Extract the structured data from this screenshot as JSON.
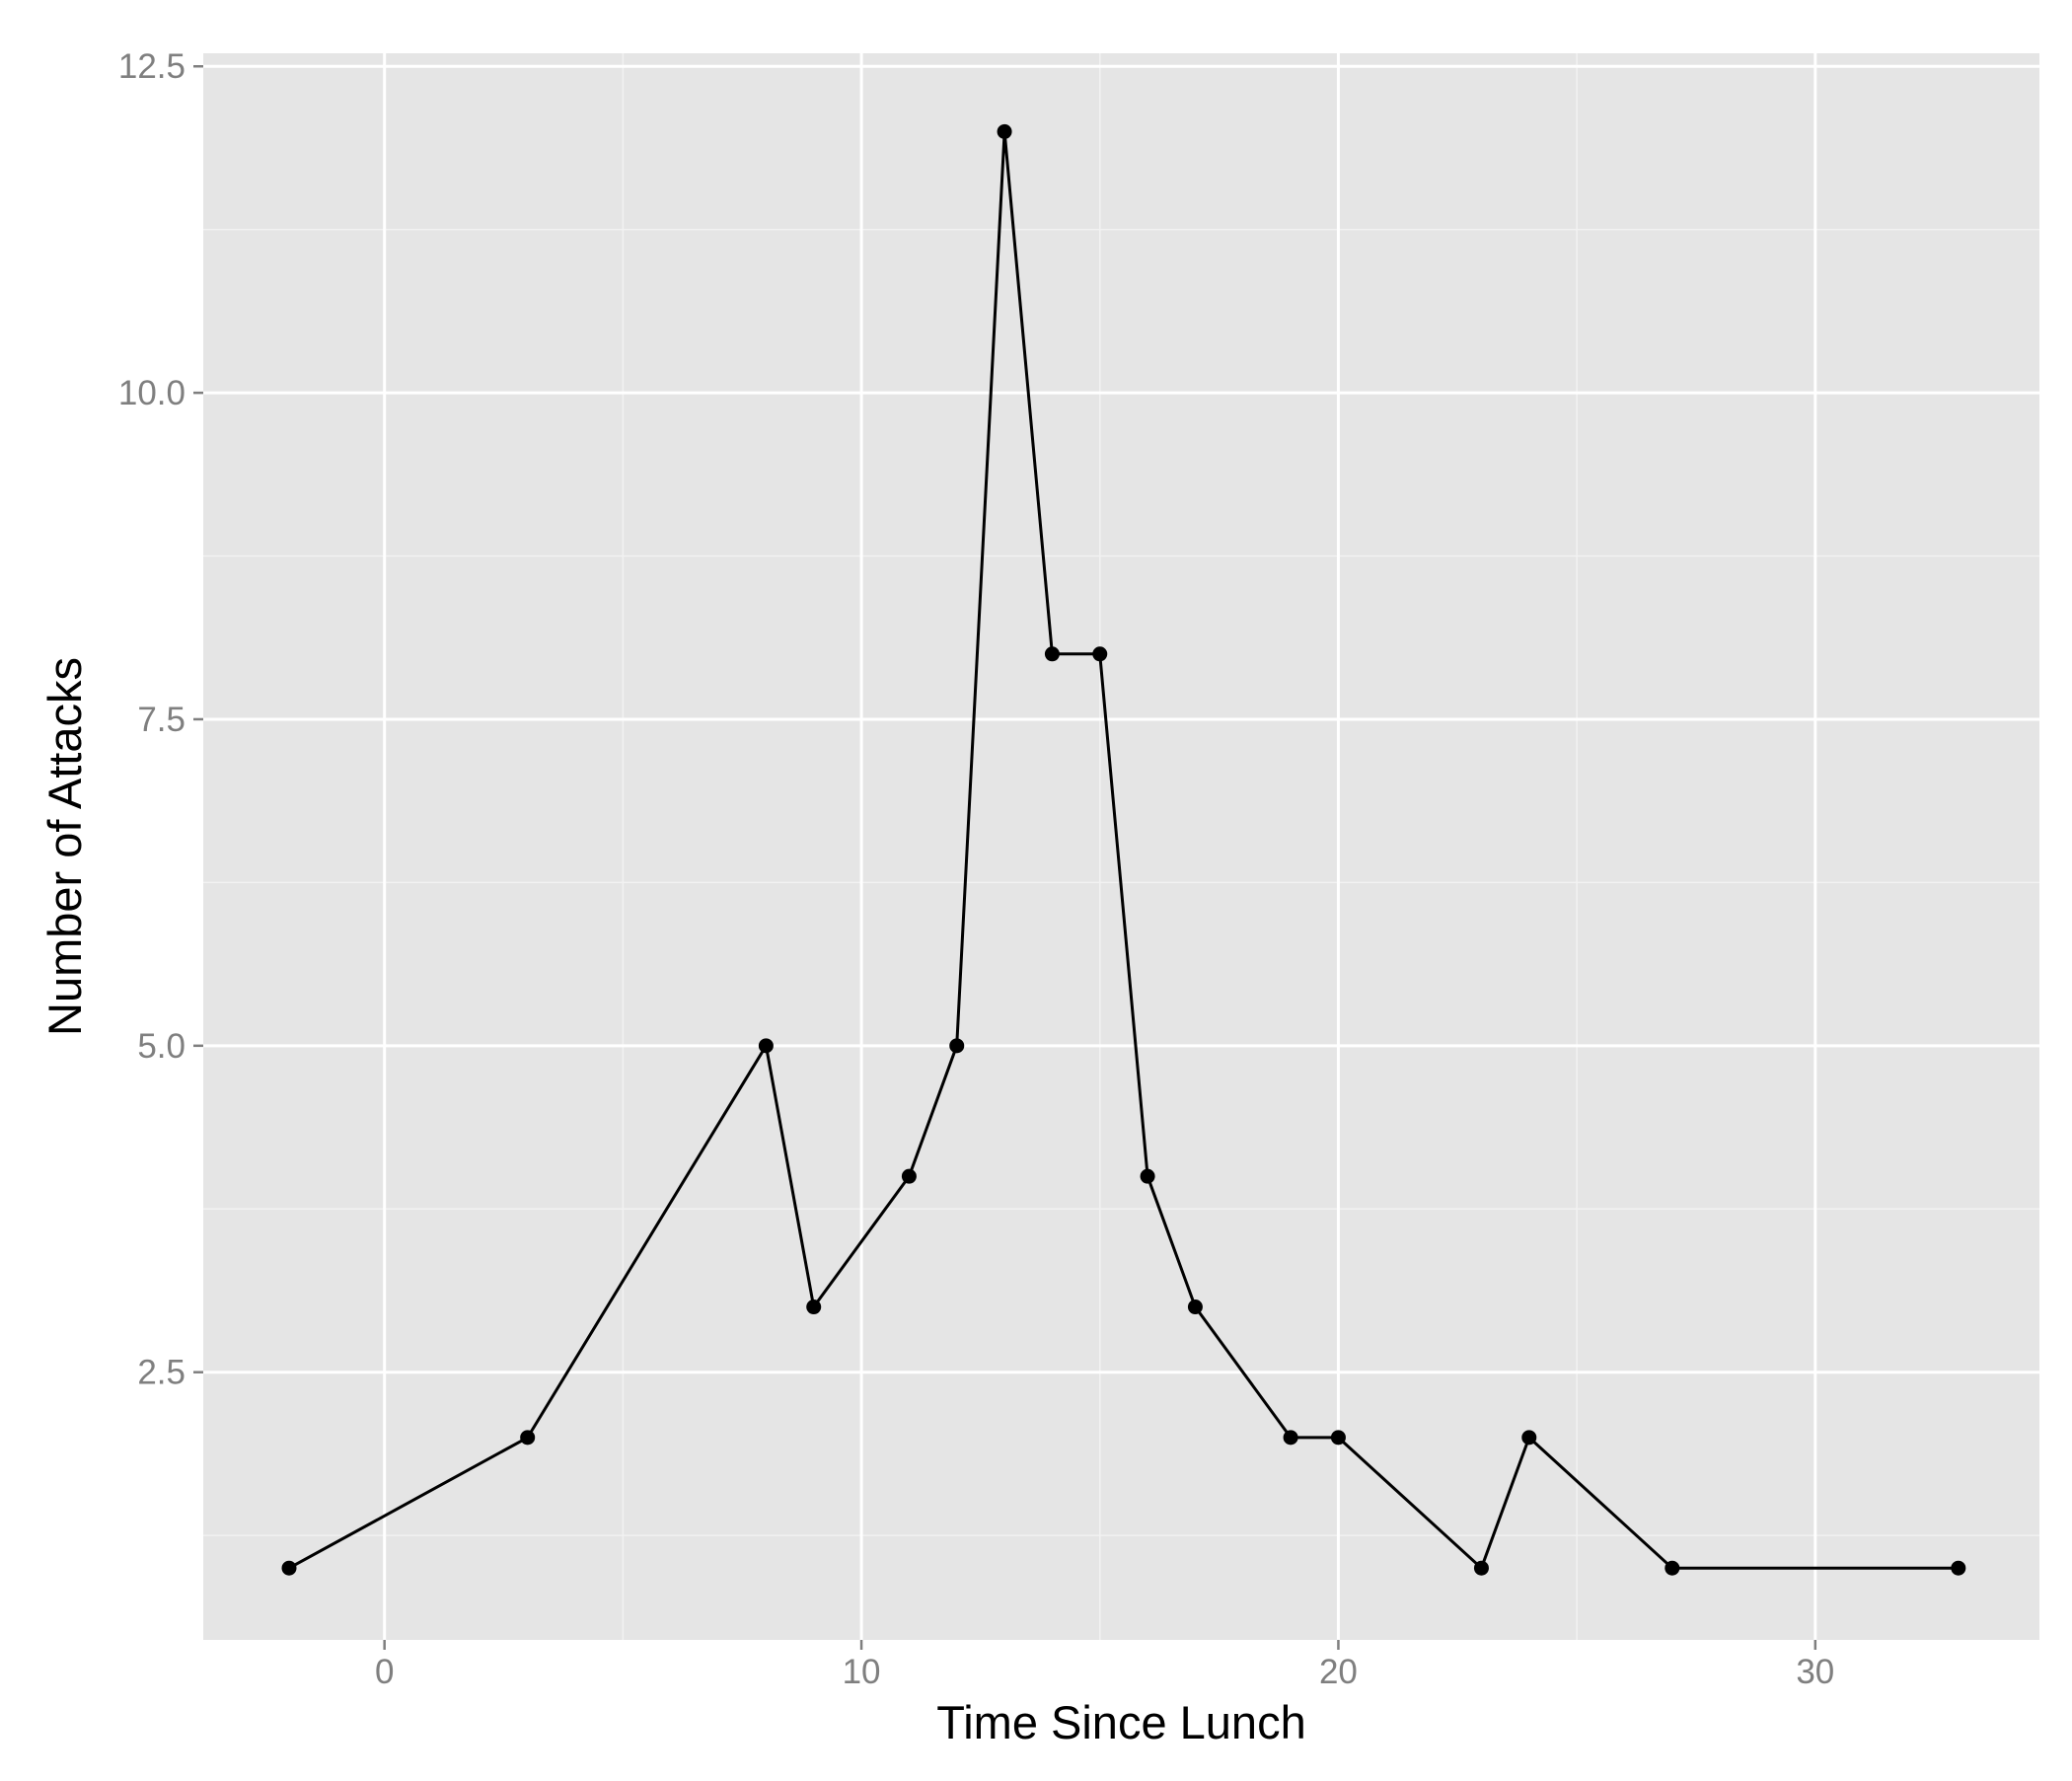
{
  "chart_data": {
    "type": "line",
    "title": "",
    "xlabel": "Time Since Lunch",
    "ylabel": "Number of Attacks",
    "x": [
      -2,
      3,
      8,
      9,
      11,
      12,
      13,
      14,
      15,
      16,
      17,
      19,
      20,
      23,
      24,
      27,
      33
    ],
    "y": [
      1,
      2,
      5,
      3,
      4,
      5,
      12,
      8,
      8,
      4,
      3,
      2,
      2,
      1,
      2,
      1,
      1
    ],
    "xlim": [
      -3.8,
      34.7
    ],
    "ylim": [
      0.45,
      12.6
    ],
    "x_ticks": [
      0,
      10,
      20,
      30
    ],
    "x_tick_labels": [
      "0",
      "10",
      "20",
      "30"
    ],
    "x_minor_ticks": [
      5,
      15,
      25
    ],
    "y_ticks": [
      2.5,
      5.0,
      7.5,
      10.0,
      12.5
    ],
    "y_tick_labels": [
      "2.5",
      "5.0",
      "7.5",
      "10.0",
      "12.5"
    ],
    "y_minor_ticks": [
      1.25,
      3.75,
      6.25,
      8.75,
      11.25
    ],
    "grid": true,
    "legend": "none",
    "colors": {
      "panel_background": "#e5e5e5",
      "grid_major": "#ffffff",
      "grid_minor": "#f2f2f2",
      "line": "#000000",
      "point": "#000000",
      "tick_mark": "#7f7f7f",
      "tick_label": "#7f7f7f"
    }
  }
}
